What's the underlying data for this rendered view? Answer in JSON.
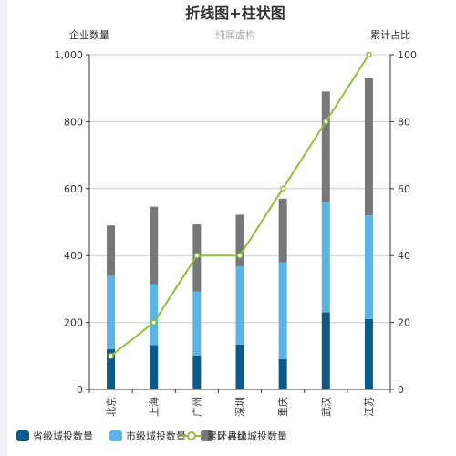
{
  "chart_data": {
    "type": "bar",
    "title": "折线图+柱状图",
    "subtitle": "纯属虚构",
    "y_left_label": "企业数量",
    "y_right_label": "累计占比",
    "categories": [
      "北京",
      "上海",
      "广州",
      "深圳",
      "重庆",
      "武汉",
      "江苏"
    ],
    "stacked": true,
    "series": [
      {
        "name": "省级城投数量",
        "type": "bar",
        "color": "#0b5a8a",
        "values": [
          120,
          132,
          101,
          134,
          90,
          230,
          210
        ]
      },
      {
        "name": "市级城投数量",
        "type": "bar",
        "color": "#5db3e4",
        "values": [
          220,
          182,
          191,
          234,
          290,
          330,
          310
        ]
      },
      {
        "name": "区县级城投数量",
        "type": "bar",
        "color": "#777777",
        "values": [
          150,
          232,
          201,
          154,
          190,
          330,
          410
        ]
      },
      {
        "name": "累计占比",
        "type": "line",
        "axis": "right",
        "color": "#8fbf3c",
        "values": [
          10,
          20,
          40,
          40,
          60,
          80,
          100
        ]
      }
    ],
    "y_left_range": [
      0,
      1000
    ],
    "y_left_ticks": [
      "0",
      "200",
      "400",
      "600",
      "800",
      "1,000"
    ],
    "y_right_range": [
      0,
      100
    ],
    "y_right_ticks": [
      "0",
      "20",
      "40",
      "60",
      "80",
      "100"
    ],
    "grid": true,
    "legend_position": "bottom-left"
  }
}
